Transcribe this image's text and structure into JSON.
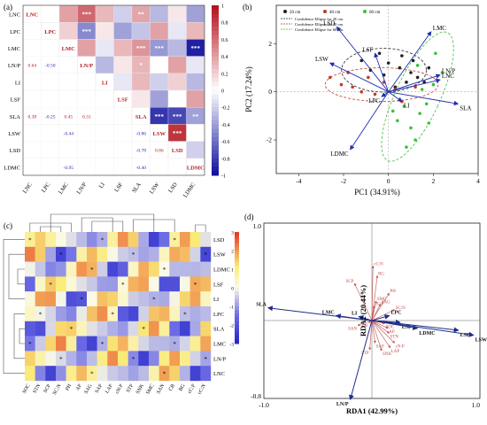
{
  "panels": {
    "a": {
      "label": "(a)",
      "vars": [
        "LNC",
        "LPC",
        "LMC",
        "LN/P",
        "LI",
        "LSF",
        "SLA",
        "LSW",
        "LSD",
        "LDMC"
      ],
      "colorbar_ticks": [
        "1",
        "0.8",
        "0.6",
        "0.4",
        "0.2",
        "0",
        "-0.2",
        "-0.4",
        "-0.6",
        "-0.8",
        "-1"
      ],
      "chart_data": {
        "type": "heatmap",
        "title": "",
        "rows": [
          "LNC",
          "LPC",
          "LMC",
          "LN/P",
          "LI",
          "LSF",
          "SLA",
          "LSW",
          "LSD",
          "LDMC"
        ],
        "lower_triangle": [
          {
            "row": "LN/P",
            "col": "LNC",
            "value": "0.64"
          },
          {
            "row": "LN/P",
            "col": "LPC",
            "value": "-0.50"
          },
          {
            "row": "SLA",
            "col": "LNC",
            "value": "0.38"
          },
          {
            "row": "SLA",
            "col": "LPC",
            "value": "-0.25"
          },
          {
            "row": "SLA",
            "col": "LMC",
            "value": "0.45"
          },
          {
            "row": "SLA",
            "col": "LN/P",
            "value": "0.31"
          },
          {
            "row": "LSW",
            "col": "LMC",
            "value": "-0.44"
          },
          {
            "row": "LSW",
            "col": "SLA",
            "value": "-0.86"
          },
          {
            "row": "LSD",
            "col": "SLA",
            "value": "-0.78"
          },
          {
            "row": "LSD",
            "col": "LSW",
            "value": "0.86"
          },
          {
            "row": "LDMC",
            "col": "LMC",
            "value": "-0.95"
          },
          {
            "row": "LDMC",
            "col": "SLA",
            "value": "-0.40"
          }
        ],
        "upper_stars": [
          {
            "row": "LNC",
            "col": "LN/P",
            "stars": "***"
          },
          {
            "row": "LNC",
            "col": "SLA",
            "stars": "**"
          },
          {
            "row": "LPC",
            "col": "LN/P",
            "stars": "***"
          },
          {
            "row": "LMC",
            "col": "SLA",
            "stars": "***"
          },
          {
            "row": "LMC",
            "col": "LSW",
            "stars": "***"
          },
          {
            "row": "LMC",
            "col": "LDMC",
            "stars": "***"
          },
          {
            "row": "LN/P",
            "col": "SLA",
            "stars": "*"
          },
          {
            "row": "SLA",
            "col": "LSW",
            "stars": "***"
          },
          {
            "row": "SLA",
            "col": "LSD",
            "stars": "***"
          },
          {
            "row": "SLA",
            "col": "LDMC",
            "stars": "**"
          },
          {
            "row": "LSW",
            "col": "LSD",
            "stars": "***"
          },
          {
            "row": "LSW",
            "col": "LDMC",
            "stars": "**"
          }
        ],
        "colorbar_range": [
          -1,
          1
        ]
      }
    },
    "b": {
      "label": "(b)",
      "legend": [
        "20 cm",
        "40 cm",
        "60 cm",
        "Confidence Ellipse for 20 cm",
        "Confidence Ellipse for 40 cm",
        "Confidence Ellipse for 60 cm"
      ],
      "colors": {
        "20cm": "#222222",
        "40cm": "#c0392b",
        "60cm": "#3bbf3b",
        "arrow": "#1f2db0"
      },
      "chart_data": {
        "type": "scatter",
        "title": "",
        "xlabel": "PC1 (34.91%)",
        "ylabel": "PC2 (17.24%)",
        "xlim": [
          -5,
          4
        ],
        "ylim": [
          -3.4,
          3.6
        ],
        "xticks": [
          "-4",
          "-2",
          "0",
          "2",
          "4"
        ],
        "yticks": [
          "-2",
          "0",
          "2"
        ],
        "loadings": [
          {
            "name": "LSD",
            "x": -2.3,
            "y": 2.7
          },
          {
            "name": "LMC",
            "x": 1.9,
            "y": 2.5
          },
          {
            "name": "LSF",
            "x": -0.6,
            "y": 1.6
          },
          {
            "name": "LSW",
            "x": -2.6,
            "y": 1.2
          },
          {
            "name": "LN/P",
            "x": 2.3,
            "y": 0.7
          },
          {
            "name": "LNC",
            "x": 2.3,
            "y": 0.5
          },
          {
            "name": "LPC",
            "x": -0.3,
            "y": -0.2
          },
          {
            "name": "LI",
            "x": 0.6,
            "y": -0.4
          },
          {
            "name": "SLA",
            "x": 3.1,
            "y": -0.5
          },
          {
            "name": "LDMC",
            "x": -1.7,
            "y": -2.4
          }
        ],
        "series": [
          {
            "name": "20 cm",
            "points": [
              [
                -1.2,
                1.3
              ],
              [
                -0.4,
                1.6
              ],
              [
                0.0,
                1.2
              ],
              [
                0.5,
                1.0
              ],
              [
                1.0,
                0.8
              ],
              [
                1.3,
                0.6
              ],
              [
                1.6,
                0.4
              ],
              [
                -0.8,
                0.9
              ],
              [
                0.3,
                0.2
              ],
              [
                0.8,
                0.4
              ],
              [
                1.8,
                1.0
              ],
              [
                -0.2,
                0.7
              ],
              [
                0.6,
                1.5
              ],
              [
                1.1,
                1.3
              ]
            ]
          },
          {
            "name": "40 cm",
            "points": [
              [
                -2.1,
                0.3
              ],
              [
                -1.6,
                0.2
              ],
              [
                -1.2,
                0.0
              ],
              [
                -0.6,
                -0.1
              ],
              [
                -0.2,
                0.4
              ],
              [
                0.3,
                0.1
              ],
              [
                -1.8,
                0.8
              ],
              [
                -0.9,
                0.6
              ],
              [
                1.2,
                0.2
              ],
              [
                0.6,
                -0.4
              ],
              [
                -2.6,
                0.6
              ]
            ]
          },
          {
            "name": "60 cm",
            "points": [
              [
                0.4,
                -1.2
              ],
              [
                1.0,
                -1.5
              ],
              [
                1.4,
                -0.9
              ],
              [
                1.7,
                -0.5
              ],
              [
                2.0,
                0.3
              ],
              [
                0.8,
                -2.3
              ],
              [
                1.2,
                -2.0
              ],
              [
                0.2,
                -0.8
              ],
              [
                1.5,
                0.1
              ],
              [
                2.4,
                0.8
              ],
              [
                1.8,
                -1.3
              ],
              [
                0.7,
                -0.6
              ],
              [
                1.3,
                1.1
              ],
              [
                2.1,
                1.6
              ]
            ]
          }
        ]
      }
    },
    "c": {
      "label": "(c)",
      "colorbar_ticks": [
        "3",
        "2",
        "1",
        "0",
        "-1",
        "-2",
        "-3"
      ],
      "chart_data": {
        "type": "heatmap",
        "title": "",
        "rows": [
          "LSD",
          "LSW",
          "LDMC",
          "LSF",
          "LI",
          "LPC",
          "SLA",
          "LMC",
          "LN/P",
          "LNC"
        ],
        "columns": [
          "SOC",
          "STN",
          "SCP",
          "SC:N",
          "PH",
          "AP",
          "SAG",
          "SAP",
          "LAP",
          "cN:P",
          "STP",
          "SNK",
          "SMC",
          "SAN",
          "CB",
          "BG",
          "cC:P",
          "cC:N"
        ]
      }
    },
    "d": {
      "label": "(d)",
      "colors": {
        "trait": "#1f2d8a",
        "soil": "#c0504d"
      },
      "chart_data": {
        "type": "scatter",
        "title": "",
        "xlabel": "RDA1 (42.99%)",
        "ylabel": "RDA2 (20.44%)",
        "xlim": [
          -1.0,
          1.0
        ],
        "ylim": [
          -0.8,
          1.0
        ],
        "xtick_labels": [
          "-1.0",
          "1.0"
        ],
        "ytick_labels": [
          "1.0",
          "-0.8"
        ],
        "response_arrows": [
          {
            "name": "SLA",
            "x": -0.96,
            "y": 0.13
          },
          {
            "name": "LMC",
            "x": -0.33,
            "y": 0.05
          },
          {
            "name": "LI",
            "x": -0.12,
            "y": 0.04
          },
          {
            "name": "LPC",
            "x": 0.16,
            "y": 0.05
          },
          {
            "name": "LSF",
            "x": 0.26,
            "y": -0.02
          },
          {
            "name": "LDMC",
            "x": 0.42,
            "y": -0.08
          },
          {
            "name": "LSD",
            "x": 0.8,
            "y": -0.1
          },
          {
            "name": "LSW",
            "x": 0.94,
            "y": -0.15
          },
          {
            "name": "LN/P",
            "x": -0.2,
            "y": -0.81
          }
        ],
        "explanatory_arrows": [
          {
            "name": "cC:N",
            "x": 0.01,
            "y": 0.56
          },
          {
            "name": "BG",
            "x": 0.05,
            "y": 0.46
          },
          {
            "name": "SCP",
            "x": -0.16,
            "y": 0.38
          },
          {
            "name": "PH",
            "x": 0.16,
            "y": 0.28
          },
          {
            "name": "SMC",
            "x": 0.04,
            "y": 0.2
          },
          {
            "name": "SAG",
            "x": 0.08,
            "y": 0.17
          },
          {
            "name": "cC:P",
            "x": 0.02,
            "y": 0.15
          },
          {
            "name": "SC:N",
            "x": 0.21,
            "y": 0.11
          },
          {
            "name": "SAN",
            "x": -0.13,
            "y": -0.05
          },
          {
            "name": "CB",
            "x": -0.03,
            "y": -0.02
          },
          {
            "name": "SOC",
            "x": 0.12,
            "y": -0.03
          },
          {
            "name": "AP",
            "x": 0.15,
            "y": -0.08
          },
          {
            "name": "STN",
            "x": 0.16,
            "y": -0.13
          },
          {
            "name": "cN:P",
            "x": 0.21,
            "y": -0.23
          },
          {
            "name": "SAP",
            "x": 0.03,
            "y": -0.23
          },
          {
            "name": "LAP",
            "x": 0.17,
            "y": -0.28
          },
          {
            "name": "STP",
            "x": -0.02,
            "y": -0.3
          },
          {
            "name": "SNK",
            "x": 0.09,
            "y": -0.31
          }
        ]
      }
    }
  }
}
